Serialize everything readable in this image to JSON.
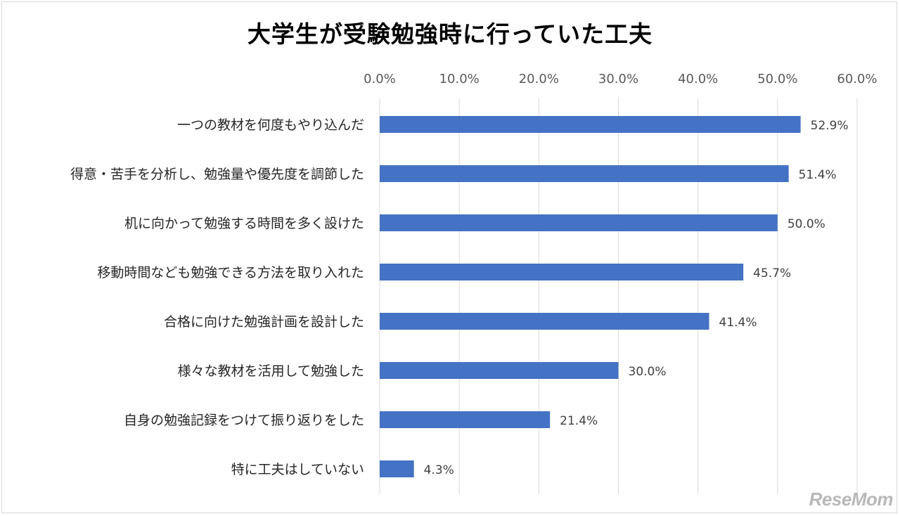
{
  "chart_data": {
    "type": "bar",
    "orientation": "horizontal",
    "title": "大学生が受験勉強時に行っていた工夫",
    "categories": [
      "一つの教材を何度もやり込んだ",
      "得意・苦手を分析し、勉強量や優先度を調節した",
      "机に向かって勉強する時間を多く設けた",
      "移動時間なども勉強できる方法を取り入れた",
      "合格に向けた勉強計画を設計した",
      "様々な教材を活用して勉強した",
      "自身の勉強記録をつけて振り返りをした",
      "特に工夫はしていない"
    ],
    "values": [
      52.9,
      51.4,
      50.0,
      45.7,
      41.4,
      30.0,
      21.4,
      4.3
    ],
    "data_labels": [
      "52.9%",
      "51.4%",
      "50.0%",
      "45.7%",
      "41.4%",
      "30.0%",
      "21.4%",
      "4.3%"
    ],
    "xlim": [
      0,
      60
    ],
    "x_ticks": [
      0,
      10,
      20,
      30,
      40,
      50,
      60
    ],
    "x_tick_labels": [
      "0.0%",
      "10.0%",
      "20.0%",
      "30.0%",
      "40.0%",
      "50.0%",
      "60.0%"
    ],
    "x_axis_position": "top",
    "grid": true,
    "legend": "none",
    "bar_color": "#4472c4",
    "grid_color": "#d9d9d9"
  },
  "watermark": "ReseMom"
}
